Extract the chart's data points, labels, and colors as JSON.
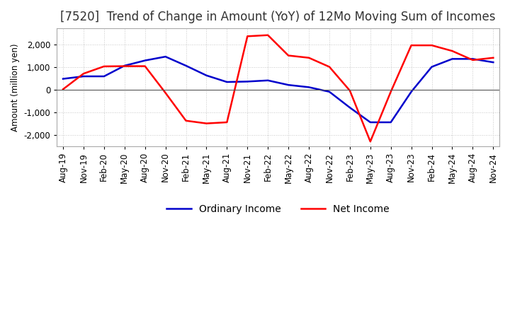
{
  "title": "[7520]  Trend of Change in Amount (YoY) of 12Mo Moving Sum of Incomes",
  "ylabel": "Amount (million yen)",
  "background_color": "#ffffff",
  "grid_color": "#c8c8c8",
  "ordinary_income_color": "#0000cc",
  "net_income_color": "#ff0000",
  "x_labels": [
    "Aug-19",
    "Nov-19",
    "Feb-20",
    "May-20",
    "Aug-20",
    "Nov-20",
    "Feb-21",
    "May-21",
    "Aug-21",
    "Nov-21",
    "Feb-22",
    "May-22",
    "Aug-22",
    "Nov-22",
    "Feb-23",
    "May-23",
    "Aug-23",
    "Nov-23",
    "Feb-24",
    "May-24",
    "Aug-24",
    "Nov-24"
  ],
  "ordinary_income": [
    470,
    580,
    580,
    1050,
    1280,
    1450,
    1050,
    620,
    330,
    350,
    400,
    200,
    100,
    -100,
    -800,
    -1450,
    -1450,
    -100,
    1000,
    1350,
    1350,
    1200
  ],
  "net_income": [
    10,
    700,
    1020,
    1030,
    1030,
    -150,
    -1380,
    -1500,
    -1450,
    2350,
    2400,
    1500,
    1400,
    1000,
    -50,
    -2300,
    -100,
    1950,
    1950,
    1700,
    1300,
    1400
  ],
  "ylim": [
    -2500,
    2700
  ],
  "yticks": [
    -2000,
    -1000,
    0,
    1000,
    2000
  ],
  "title_fontsize": 12,
  "legend_fontsize": 10,
  "tick_fontsize": 8.5,
  "linewidth": 1.8
}
